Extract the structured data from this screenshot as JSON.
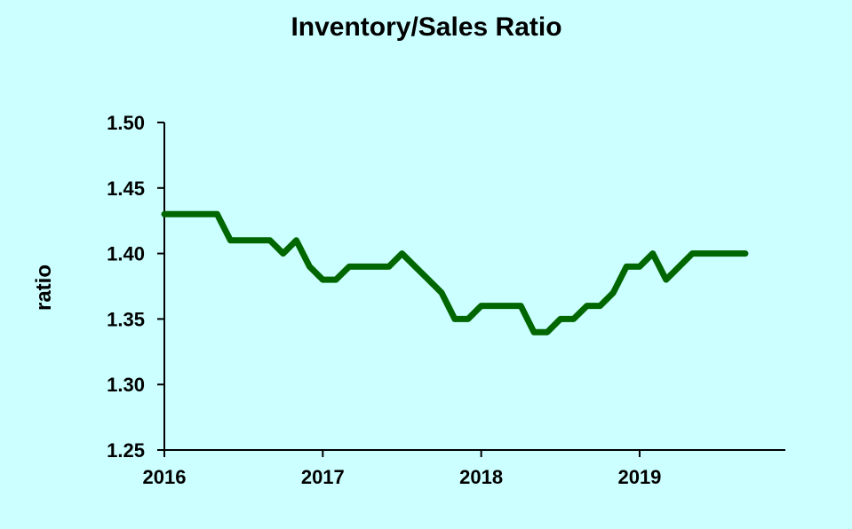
{
  "colors": {
    "background": "#ccffff",
    "line": "#006600",
    "axis": "#000000"
  },
  "chart_data": {
    "type": "line",
    "title": "Inventory/Sales Ratio",
    "xlabel": "",
    "ylabel": "ratio",
    "xlim": [
      2016,
      2019.92
    ],
    "ylim": [
      1.25,
      1.5
    ],
    "yticks": [
      1.25,
      1.3,
      1.35,
      1.4,
      1.45,
      1.5
    ],
    "ytick_labels": [
      "1.25",
      "1.30",
      "1.35",
      "1.40",
      "1.45",
      "1.50"
    ],
    "xticks": [
      2016,
      2017,
      2018,
      2019
    ],
    "xtick_labels": [
      "2016",
      "2017",
      "2018",
      "2019"
    ],
    "grid": false,
    "series": [
      {
        "name": "",
        "x": [
          2016.0,
          2016.083,
          2016.167,
          2016.25,
          2016.333,
          2016.417,
          2016.5,
          2016.583,
          2016.667,
          2016.75,
          2016.833,
          2016.917,
          2017.0,
          2017.083,
          2017.167,
          2017.25,
          2017.333,
          2017.417,
          2017.5,
          2017.583,
          2017.667,
          2017.75,
          2017.833,
          2017.917,
          2018.0,
          2018.083,
          2018.167,
          2018.25,
          2018.333,
          2018.417,
          2018.5,
          2018.583,
          2018.667,
          2018.75,
          2018.833,
          2018.917,
          2019.0,
          2019.083,
          2019.167,
          2019.25,
          2019.333,
          2019.417,
          2019.5,
          2019.583,
          2019.667
        ],
        "values": [
          1.43,
          1.43,
          1.43,
          1.43,
          1.43,
          1.41,
          1.41,
          1.41,
          1.41,
          1.4,
          1.41,
          1.39,
          1.38,
          1.38,
          1.39,
          1.39,
          1.39,
          1.39,
          1.4,
          1.39,
          1.38,
          1.37,
          1.35,
          1.35,
          1.36,
          1.36,
          1.36,
          1.36,
          1.34,
          1.34,
          1.35,
          1.35,
          1.36,
          1.36,
          1.37,
          1.39,
          1.39,
          1.4,
          1.38,
          1.39,
          1.4,
          1.4,
          1.4,
          1.4,
          1.4
        ]
      }
    ]
  }
}
